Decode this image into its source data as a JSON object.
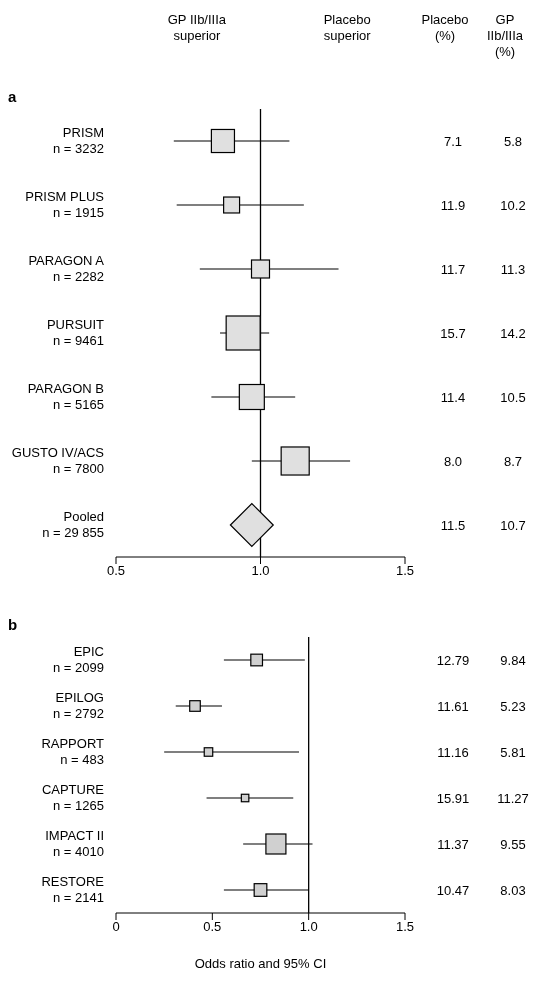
{
  "chart_data": [
    {
      "type": "bubble",
      "title": "a",
      "orientation": "horizontal",
      "categories": [
        "PRISM\nn = 3232",
        "PRISM PLUS\nn = 1915",
        "PARAGON A\nn = 2282",
        "PURSUIT\nn = 9461",
        "PARAGON B\nn = 5165",
        "GUSTO IV/ACS\nn = 7800",
        "Pooled\nn = 29 855"
      ],
      "series": [
        {
          "type": "bubble",
          "marker": "square",
          "color": "#e0e0e0",
          "values": [
            0.87,
            0.9,
            1.0,
            0.94,
            0.97,
            1.12,
            null
          ],
          "sizes": [
            0.46,
            0.22,
            0.28,
            1,
            0.54,
            0.68,
            null
          ],
          "errors": [
            [
              0.7,
              1.1
            ],
            [
              0.71,
              1.15
            ],
            [
              0.79,
              1.27
            ],
            [
              0.86,
              1.03
            ],
            [
              0.83,
              1.12
            ],
            [
              0.97,
              1.31
            ],
            null
          ]
        },
        {
          "type": "scatter",
          "marker": "diamond",
          "color": "#e0e0e0",
          "values": [
            null,
            null,
            null,
            null,
            null,
            null,
            0.97
          ],
          "errors": [
            null,
            null,
            null,
            null,
            null,
            null,
            [
              0.9,
              1.03
            ]
          ]
        }
      ],
      "xlim": [
        0.5,
        1.5
      ],
      "xticks": [
        0.5,
        {
          "value": 1,
          "label": "1.0"
        },
        1.5
      ],
      "ref_lines": [
        {
          "axis": "x",
          "value": 1
        }
      ],
      "annotations": [
        "GP IIb/IIIa superior",
        "Placebo superior",
        "Placebo (%)",
        "GP IIb/IIIa (%)",
        "7.1",
        "5.8",
        "11.9",
        "10.2",
        "11.7",
        "11.3",
        "15.7",
        "14.2",
        "11.4",
        "10.5",
        "8.0",
        "8.7",
        "11.5",
        "10.7"
      ]
    },
    {
      "type": "bubble",
      "title": "b",
      "orientation": "horizontal",
      "categories": [
        "EPIC\nn = 2099",
        "EPILOG\nn = 2792",
        "RAPPORT\nn = 483",
        "CAPTURE\nn = 1265",
        "IMPACT II\nn = 4010",
        "RESTORE\nn = 2141"
      ],
      "series": [
        {
          "type": "bubble",
          "marker": "square",
          "color": "#d0d0d0",
          "values": [
            0.73,
            0.41,
            0.48,
            0.67,
            0.83,
            0.75
          ],
          "sizes": [
            0.34,
            0.28,
            0.18,
            0.14,
            1,
            0.4
          ],
          "errors": [
            [
              0.56,
              0.98
            ],
            [
              0.31,
              0.55
            ],
            [
              0.25,
              0.95
            ],
            [
              0.47,
              0.92
            ],
            [
              0.66,
              1.02
            ],
            [
              0.56,
              1.0
            ]
          ]
        }
      ],
      "xlim": [
        0,
        1.5
      ],
      "xticks": [
        0,
        0.5,
        {
          "value": 1,
          "label": "1.0"
        },
        1.5
      ],
      "xlabel": "Odds ratio and 95% CI",
      "ref_lines": [
        {
          "axis": "x",
          "value": 1
        }
      ],
      "annotations": [
        "12.79",
        "9.84",
        "11.61",
        "5.23",
        "11.16",
        "5.81",
        "15.91",
        "11.27",
        "11.37",
        "9.55",
        "10.47",
        "8.03"
      ]
    }
  ]
}
